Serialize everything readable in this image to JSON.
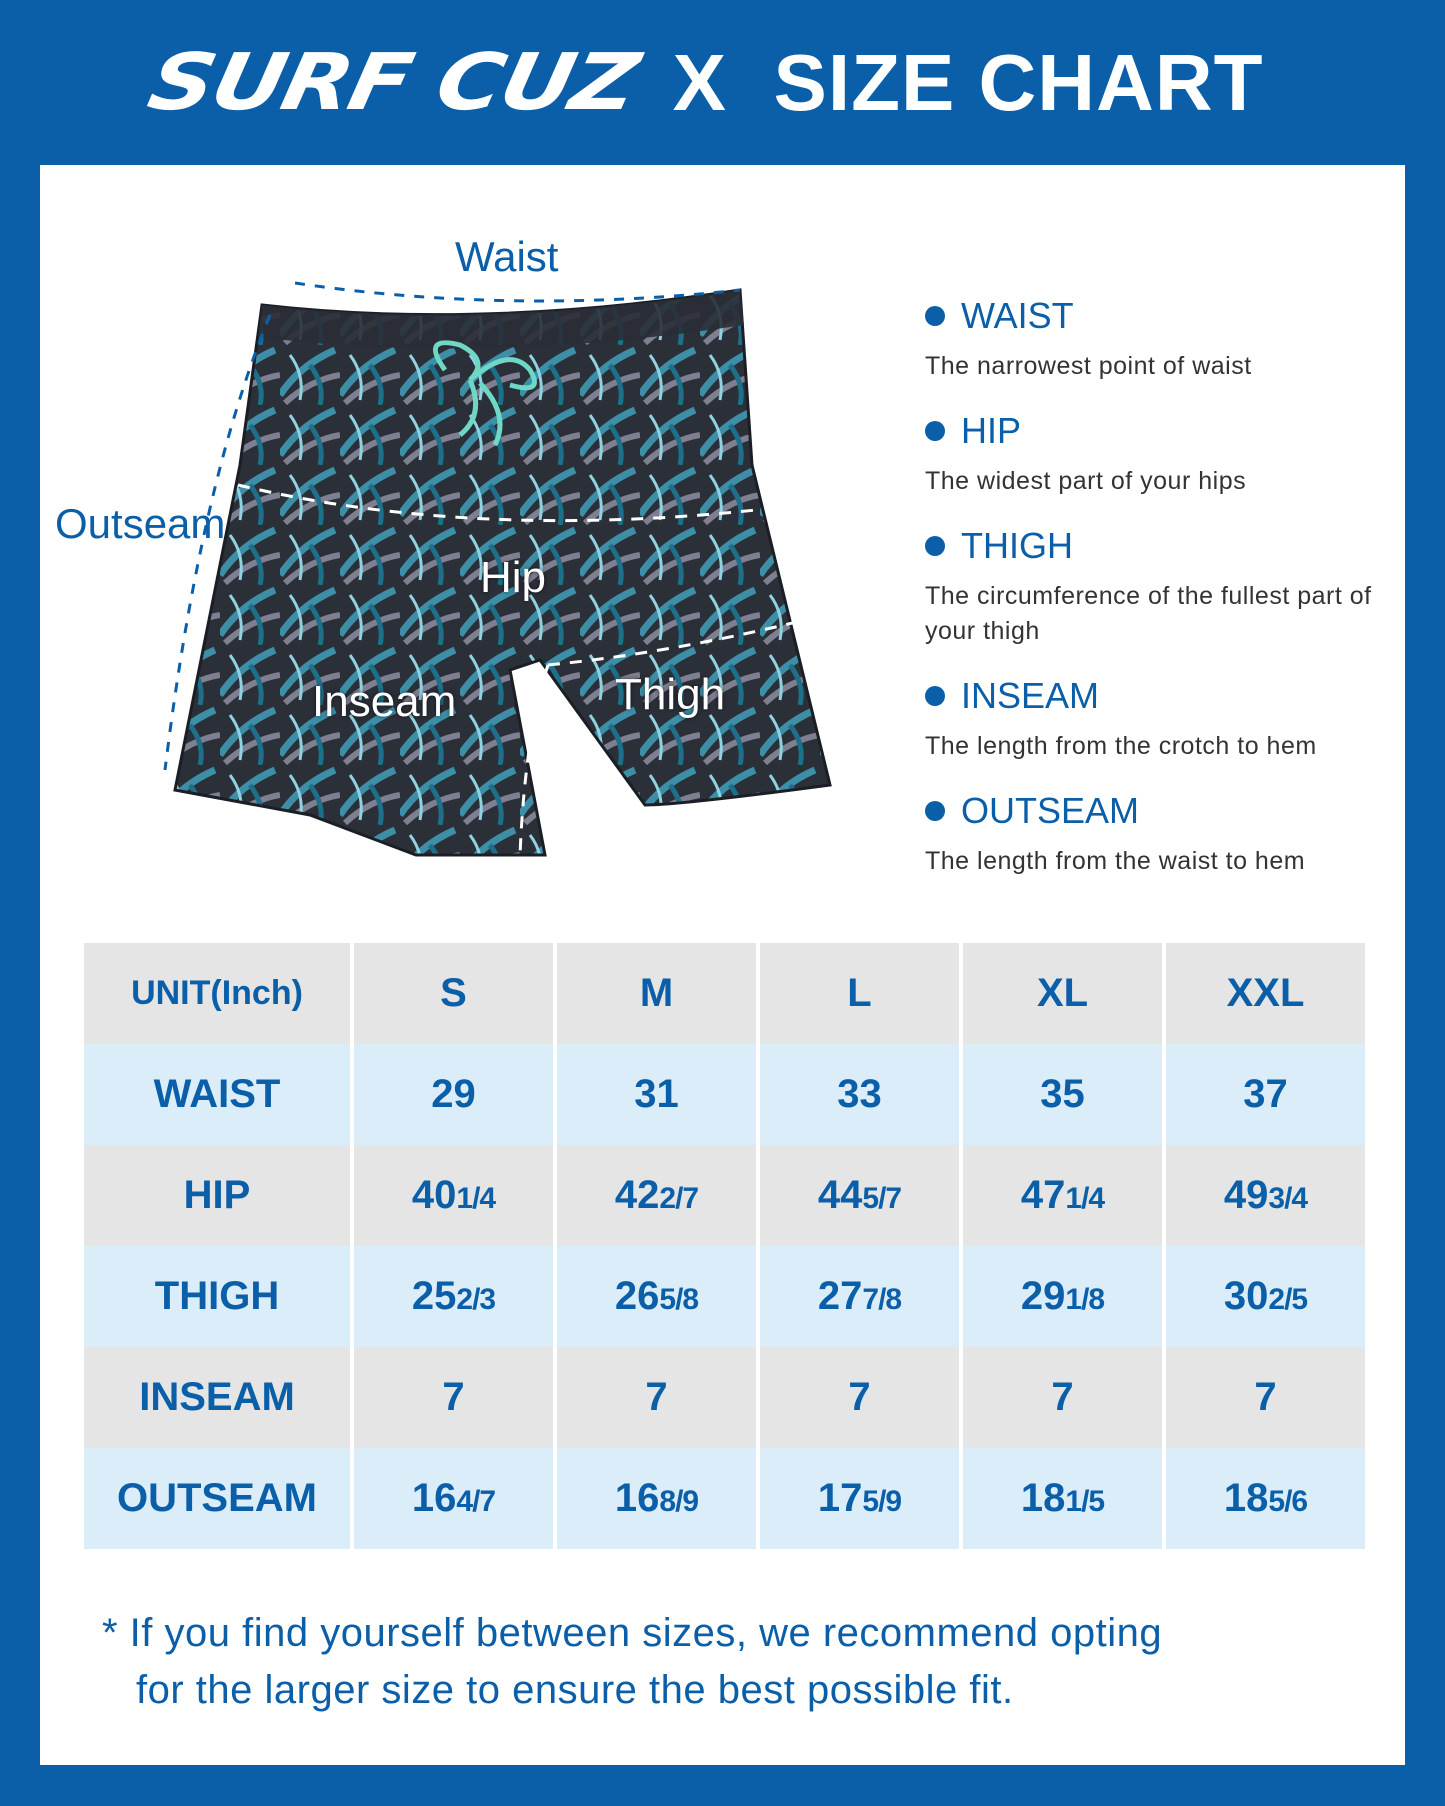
{
  "header": {
    "brand": "SURF CUZ",
    "x": "X",
    "title": "SIZE CHART"
  },
  "diagram": {
    "waist": "Waist",
    "outseam": "Outseam",
    "hip": "Hip",
    "inseam": "Inseam",
    "thigh": "Thigh"
  },
  "legend": [
    {
      "title": "WAIST",
      "desc": "The narrowest point of waist"
    },
    {
      "title": "HIP",
      "desc": "The widest part of your hips"
    },
    {
      "title": "THIGH",
      "desc": "The circumference of the fullest part of your thigh"
    },
    {
      "title": "INSEAM",
      "desc": "The length from the crotch to hem"
    },
    {
      "title": "OUTSEAM",
      "desc": "The length from the waist to hem"
    }
  ],
  "table": {
    "unit": "UNIT(Inch)",
    "sizes": [
      "S",
      "M",
      "L",
      "XL",
      "XXL"
    ],
    "rows": [
      {
        "label": "WAIST",
        "values": [
          {
            "whole": "29",
            "frac": ""
          },
          {
            "whole": "31",
            "frac": ""
          },
          {
            "whole": "33",
            "frac": ""
          },
          {
            "whole": "35",
            "frac": ""
          },
          {
            "whole": "37",
            "frac": ""
          }
        ]
      },
      {
        "label": "HIP",
        "values": [
          {
            "whole": "40",
            "frac": "1/4"
          },
          {
            "whole": "42",
            "frac": "2/7"
          },
          {
            "whole": "44",
            "frac": "5/7"
          },
          {
            "whole": "47",
            "frac": "1/4"
          },
          {
            "whole": "49",
            "frac": "3/4"
          }
        ]
      },
      {
        "label": "THIGH",
        "values": [
          {
            "whole": "25",
            "frac": "2/3"
          },
          {
            "whole": "26",
            "frac": "5/8"
          },
          {
            "whole": "27",
            "frac": "7/8"
          },
          {
            "whole": "29",
            "frac": "1/8"
          },
          {
            "whole": "30",
            "frac": "2/5"
          }
        ]
      },
      {
        "label": "INSEAM",
        "values": [
          {
            "whole": "7",
            "frac": ""
          },
          {
            "whole": "7",
            "frac": ""
          },
          {
            "whole": "7",
            "frac": ""
          },
          {
            "whole": "7",
            "frac": ""
          },
          {
            "whole": "7",
            "frac": ""
          }
        ]
      },
      {
        "label": "OUTSEAM",
        "values": [
          {
            "whole": "16",
            "frac": "4/7"
          },
          {
            "whole": "16",
            "frac": "8/9"
          },
          {
            "whole": "17",
            "frac": "5/9"
          },
          {
            "whole": "18",
            "frac": "1/5"
          },
          {
            "whole": "18",
            "frac": "5/6"
          }
        ]
      }
    ]
  },
  "note": {
    "line1": "* If you find yourself between sizes, we recommend opting",
    "line2": "for the larger size to ensure the best possible fit."
  }
}
